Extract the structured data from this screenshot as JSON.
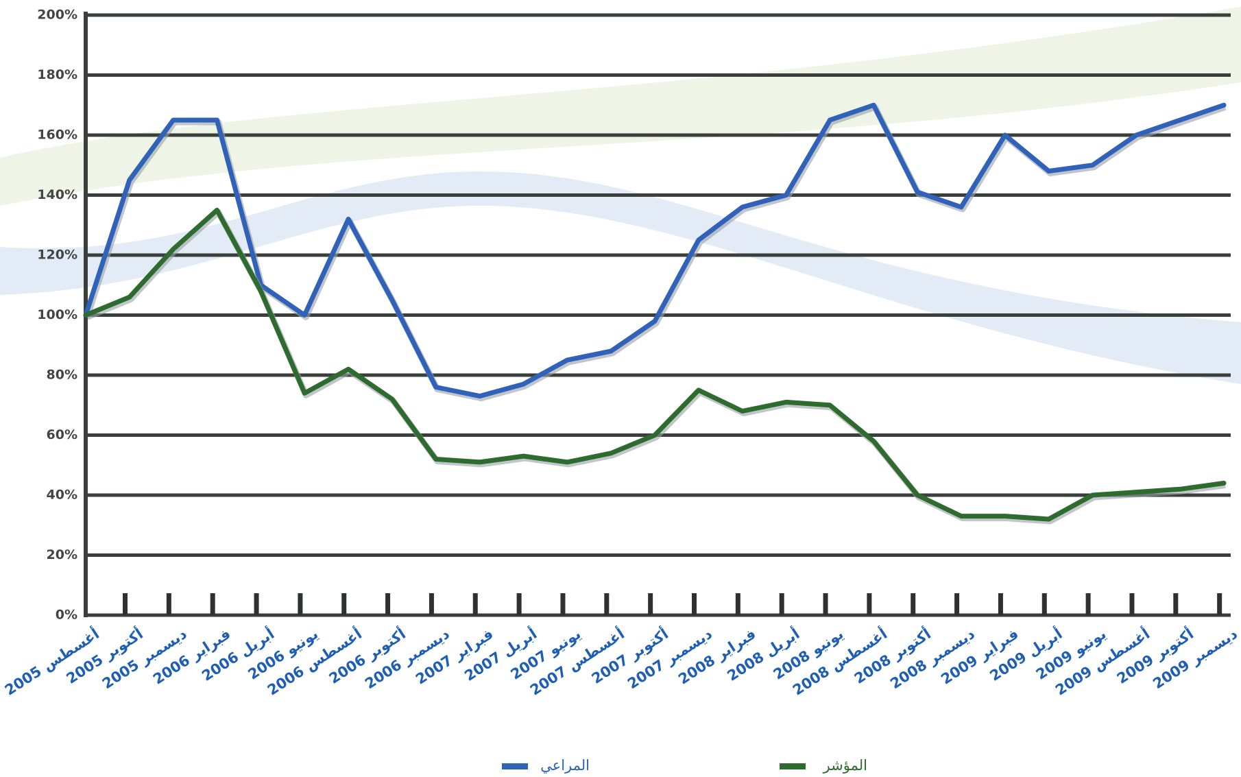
{
  "chart_data": {
    "type": "line",
    "categories": [
      "أغسطس 2005",
      "أكتوبر 2005",
      "ديسمبر 2005",
      "فبراير 2006",
      "أبريل 2006",
      "يونيو 2006",
      "أغسطس 2006",
      "أكتوبر 2006",
      "ديسمبر 2006",
      "فبراير 2007",
      "أبريل 2007",
      "يونيو 2007",
      "أغسطس 2007",
      "أكتوبر 2007",
      "ديسمبر 2007",
      "فبراير 2008",
      "أبريل 2008",
      "يونيو 2008",
      "أغسطس 2008",
      "أكتوبر 2008",
      "ديسمبر 2008",
      "فبراير 2009",
      "أبريل 2009",
      "يونيو 2009",
      "أغسطس 2009",
      "أكتوبر 2009",
      "ديسمبر 2009"
    ],
    "series": [
      {
        "name": "المراعي",
        "color": "#2f62b8",
        "values": [
          100,
          145,
          165,
          165,
          110,
          100,
          132,
          105,
          76,
          73,
          77,
          85,
          88,
          98,
          125,
          136,
          140,
          165,
          170,
          141,
          136,
          160,
          148,
          150,
          160,
          165,
          170
        ]
      },
      {
        "name": "المؤشر",
        "color": "#2e6b2e",
        "values": [
          100,
          106,
          122,
          135,
          108,
          74,
          82,
          72,
          52,
          51,
          53,
          51,
          54,
          60,
          75,
          68,
          71,
          70,
          58,
          40,
          33,
          33,
          32,
          40,
          41,
          42,
          44
        ]
      }
    ],
    "ylim": [
      0,
      200
    ],
    "yticks": [
      {
        "value": 0,
        "label": "0%"
      },
      {
        "value": 20,
        "label": "20%"
      },
      {
        "value": 40,
        "label": "40%"
      },
      {
        "value": 60,
        "label": "60%"
      },
      {
        "value": 80,
        "label": "80%"
      },
      {
        "value": 100,
        "label": "100%"
      },
      {
        "value": 120,
        "label": "120%"
      },
      {
        "value": 140,
        "label": "140%"
      },
      {
        "value": 160,
        "label": "160%"
      },
      {
        "value": 180,
        "label": "180%"
      },
      {
        "value": 200,
        "label": "200%"
      }
    ],
    "grid": true,
    "legend": "bottom"
  }
}
